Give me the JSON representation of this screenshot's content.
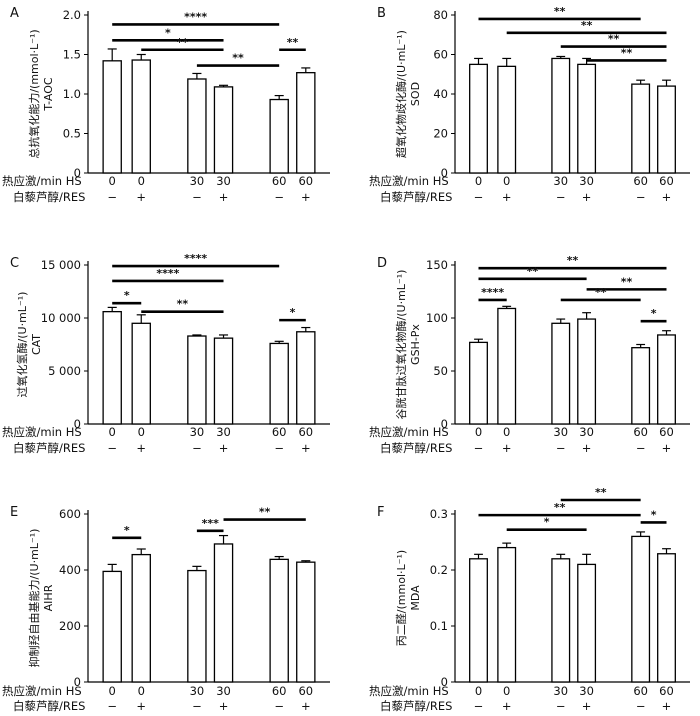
{
  "figure": {
    "row_labels": {
      "hs": "热应激/min HS",
      "res": "白藜芦醇/RES"
    },
    "hs_levels": [
      "0",
      "0",
      "30",
      "30",
      "60",
      "60"
    ],
    "res_levels": [
      "−",
      "+",
      "−",
      "+",
      "−",
      "+"
    ]
  },
  "chart_data": [
    {
      "panel": "A",
      "type": "bar",
      "ylabel": "总抗氧化能力/(mmol·L⁻¹)",
      "ylabel2": "T-AOC",
      "ylim": [
        0,
        2.0
      ],
      "yticks": [
        "0",
        "0.5",
        "1.0",
        "1.5",
        "2.0"
      ],
      "ytick_values": [
        0,
        0.5,
        1.0,
        1.5,
        2.0
      ],
      "values": [
        1.42,
        1.43,
        1.19,
        1.09,
        0.93,
        1.27
      ],
      "errors": [
        0.15,
        0.07,
        0.07,
        0.02,
        0.05,
        0.06
      ],
      "brackets": [
        {
          "from": 0,
          "to": 4,
          "y": 1.88,
          "label": "****"
        },
        {
          "from": 0,
          "to": 3,
          "y": 1.68,
          "label": "*"
        },
        {
          "from": 1,
          "to": 3,
          "y": 1.56,
          "label": "**"
        },
        {
          "from": 2,
          "to": 4,
          "y": 1.36,
          "label": "**"
        },
        {
          "from": 4,
          "to": 5,
          "y": 1.56,
          "label": "**"
        }
      ]
    },
    {
      "panel": "B",
      "type": "bar",
      "ylabel": "超氧化物歧化酶/(U·mL⁻¹)",
      "ylabel2": "SOD",
      "ylim": [
        0,
        80
      ],
      "yticks": [
        "0",
        "20",
        "40",
        "60",
        "80"
      ],
      "ytick_values": [
        0,
        20,
        40,
        60,
        80
      ],
      "values": [
        55,
        54,
        58,
        55,
        45,
        44
      ],
      "errors": [
        3,
        4,
        1,
        3,
        2,
        3
      ],
      "brackets": [
        {
          "from": 0,
          "to": 4,
          "y": 78,
          "label": "**"
        },
        {
          "from": 1,
          "to": 5,
          "y": 71,
          "label": "**"
        },
        {
          "from": 2,
          "to": 5,
          "y": 64,
          "label": "**"
        },
        {
          "from": 3,
          "to": 5,
          "y": 57,
          "label": "**"
        }
      ]
    },
    {
      "panel": "C",
      "type": "bar",
      "ylabel": "过氧化氢酶/(U·mL⁻¹)",
      "ylabel2": "CAT",
      "ylim": [
        0,
        15000
      ],
      "yticks": [
        "0",
        "5 000",
        "10 000",
        "15 000"
      ],
      "ytick_values": [
        0,
        5000,
        10000,
        15000
      ],
      "values": [
        10600,
        9500,
        8300,
        8100,
        7600,
        8700
      ],
      "errors": [
        400,
        800,
        100,
        300,
        200,
        400
      ],
      "brackets": [
        {
          "from": 0,
          "to": 4,
          "y": 14900,
          "label": "****"
        },
        {
          "from": 0,
          "to": 3,
          "y": 13500,
          "label": "****"
        },
        {
          "from": 0,
          "to": 1,
          "y": 11400,
          "label": "*"
        },
        {
          "from": 1,
          "to": 3,
          "y": 10600,
          "label": "**"
        },
        {
          "from": 4,
          "to": 5,
          "y": 9800,
          "label": "*"
        }
      ]
    },
    {
      "panel": "D",
      "type": "bar",
      "ylabel": "谷胱甘肽过氧化物酶/(U·mL⁻¹)",
      "ylabel2": "GSH-Px",
      "ylim": [
        0,
        150
      ],
      "yticks": [
        "0",
        "50",
        "100",
        "150"
      ],
      "ytick_values": [
        0,
        50,
        100,
        150
      ],
      "values": [
        77,
        109,
        95,
        99,
        72,
        84
      ],
      "errors": [
        3,
        2,
        4,
        6,
        3,
        4
      ],
      "brackets": [
        {
          "from": 0,
          "to": 5,
          "y": 147,
          "label": "**"
        },
        {
          "from": 0,
          "to": 3,
          "y": 137,
          "label": "**"
        },
        {
          "from": 3,
          "to": 5,
          "y": 127,
          "label": "**"
        },
        {
          "from": 0,
          "to": 1,
          "y": 117,
          "label": "****"
        },
        {
          "from": 2,
          "to": 4,
          "y": 117,
          "label": "**"
        },
        {
          "from": 4,
          "to": 5,
          "y": 97,
          "label": "*"
        }
      ]
    },
    {
      "panel": "E",
      "type": "bar",
      "ylabel": "抑制羟自由基能力/(U·mL⁻¹)",
      "ylabel2": "AIHR",
      "ylim": [
        0,
        600
      ],
      "yticks": [
        "0",
        "200",
        "400",
        "600"
      ],
      "ytick_values": [
        0,
        200,
        400,
        600
      ],
      "values": [
        395,
        455,
        398,
        493,
        438,
        428
      ],
      "errors": [
        25,
        20,
        15,
        30,
        10,
        5
      ],
      "brackets": [
        {
          "from": 0,
          "to": 1,
          "y": 515,
          "label": "*"
        },
        {
          "from": 2,
          "to": 3,
          "y": 540,
          "label": "***"
        },
        {
          "from": 3,
          "to": 5,
          "y": 580,
          "label": "**"
        }
      ]
    },
    {
      "panel": "F",
      "type": "bar",
      "ylabel": "丙二醛/(mmol·L⁻¹)",
      "ylabel2": "MDA",
      "ylim": [
        0,
        0.3
      ],
      "yticks": [
        "0",
        "0.1",
        "0.2",
        "0.3"
      ],
      "ytick_values": [
        0,
        0.1,
        0.2,
        0.3
      ],
      "values": [
        0.22,
        0.24,
        0.22,
        0.21,
        0.26,
        0.229
      ],
      "errors": [
        0.008,
        0.008,
        0.008,
        0.018,
        0.008,
        0.009
      ],
      "brackets": [
        {
          "from": 2,
          "to": 4,
          "y": 0.325,
          "label": "**"
        },
        {
          "from": 0,
          "to": 4,
          "y": 0.298,
          "label": "**"
        },
        {
          "from": 1,
          "to": 3,
          "y": 0.272,
          "label": "*"
        },
        {
          "from": 4,
          "to": 5,
          "y": 0.285,
          "label": "*"
        }
      ]
    }
  ]
}
